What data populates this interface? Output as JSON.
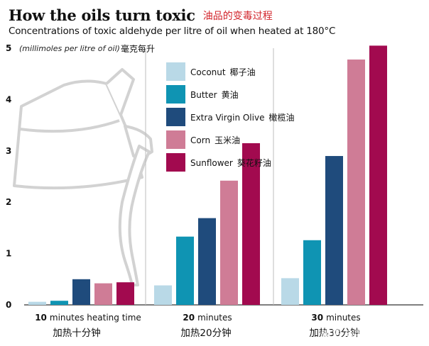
{
  "header": {
    "title": "How the oils turn toxic",
    "title_zh": "油品的变毒过程",
    "subtitle": "Concentrations of toxic aldehyde per litre of oil when heated at 180°C"
  },
  "chart_data": {
    "type": "bar",
    "title": "How the oils turn toxic",
    "subtitle": "Concentrations of toxic aldehyde per litre of oil when heated at 180°C",
    "ylabel": "(millimoles per litre of oil)",
    "ylabel_zh": "毫克每升",
    "ylim": [
      0,
      5
    ],
    "yticks": [
      0,
      1,
      2,
      3,
      4,
      5
    ],
    "grid": false,
    "legend_position": "top-center",
    "categories": [
      {
        "num": "10",
        "label": "minutes heating time",
        "zh": "加热十分钟"
      },
      {
        "num": "20",
        "label": "minutes",
        "zh": "加热20分钟"
      },
      {
        "num": "30",
        "label": "minutes",
        "zh": "加热30分钟"
      }
    ],
    "series": [
      {
        "name": "Coconut",
        "name_zh": "椰子油",
        "color": "#b9d9e7",
        "values": [
          0.06,
          0.38,
          0.52
        ]
      },
      {
        "name": "Butter",
        "name_zh": "黄油",
        "color": "#0f94b3",
        "values": [
          0.08,
          1.33,
          1.26
        ]
      },
      {
        "name": "Extra Virgin Olive",
        "name_zh": "橄榄油",
        "color": "#1f4b7c",
        "values": [
          0.5,
          1.69,
          2.9
        ]
      },
      {
        "name": "Corn",
        "name_zh": "玉米油",
        "color": "#cf7c96",
        "values": [
          0.42,
          2.42,
          4.78
        ]
      },
      {
        "name": "Sunflower",
        "name_zh": "葵花籽油",
        "color": "#a20a4f",
        "values": [
          0.44,
          3.15,
          5.05
        ]
      }
    ]
  },
  "watermark": "知乎 @度龙健康"
}
